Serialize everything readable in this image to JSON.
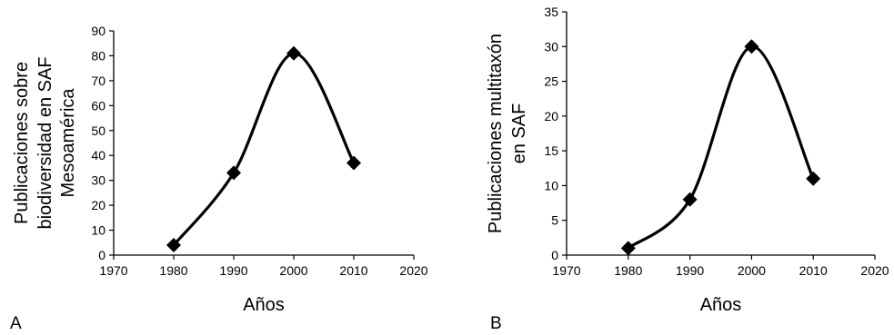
{
  "chart_data": [
    {
      "type": "line",
      "panel_label": "A",
      "xlabel": "Años",
      "ylabel_lines": [
        "Publicaciones sobre",
        "biodiversidad en SAF",
        "Mesoamérica"
      ],
      "xlim": [
        1970,
        2020
      ],
      "ylim": [
        0,
        90
      ],
      "xticks": [
        1970,
        1980,
        1990,
        2000,
        2010,
        2020
      ],
      "yticks": [
        0,
        10,
        20,
        30,
        40,
        50,
        60,
        70,
        80,
        90
      ],
      "x": [
        1980,
        1990,
        2000,
        2010
      ],
      "y": [
        4,
        33,
        81,
        37
      ],
      "marker": "diamond",
      "smooth": true,
      "grid": false,
      "color": "#000000"
    },
    {
      "type": "line",
      "panel_label": "B",
      "xlabel": "Años",
      "ylabel_lines": [
        "Publicaciones multitaxón",
        "en SAF"
      ],
      "xlim": [
        1970,
        2020
      ],
      "ylim": [
        0,
        35
      ],
      "xticks": [
        1970,
        1980,
        1990,
        2000,
        2010,
        2020
      ],
      "yticks": [
        0,
        5,
        10,
        15,
        20,
        25,
        30,
        35
      ],
      "x": [
        1980,
        1990,
        2000,
        2010
      ],
      "y": [
        1,
        8,
        30,
        11
      ],
      "marker": "diamond",
      "smooth": true,
      "grid": false,
      "color": "#000000"
    }
  ]
}
